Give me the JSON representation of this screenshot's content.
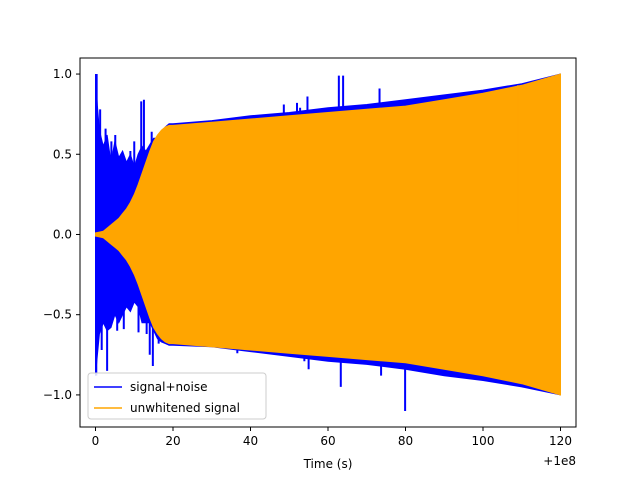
{
  "chart_data": {
    "type": "line",
    "title": "",
    "xlabel": "Time (s)",
    "ylabel": "",
    "x_offset_label": "+1e8",
    "xlim": [
      -4,
      124
    ],
    "ylim": [
      -1.2,
      1.1
    ],
    "x_ticks": [
      0,
      20,
      40,
      60,
      80,
      100,
      120
    ],
    "x_tick_labels": [
      "0",
      "20",
      "40",
      "60",
      "80",
      "100",
      "120"
    ],
    "y_ticks": [
      -1.0,
      -0.5,
      0.0,
      0.5,
      1.0
    ],
    "y_tick_labels": [
      "−1.0",
      "−0.5",
      "0.0",
      "0.5",
      "1.0"
    ],
    "grid": false,
    "legend_position": "lower-left",
    "series": [
      {
        "name": "signal+noise",
        "color": "#0000ff",
        "envelope": {
          "x": [
            0,
            0.5,
            1,
            2,
            3,
            4,
            5,
            6,
            7,
            8,
            9,
            10,
            11,
            12,
            13,
            14,
            15,
            16,
            17,
            18,
            19,
            20,
            30,
            40,
            50,
            60,
            70,
            80,
            90,
            100,
            110,
            120
          ],
          "upper": [
            1.0,
            0.8,
            0.65,
            0.55,
            0.62,
            0.45,
            0.58,
            0.48,
            0.52,
            0.45,
            0.5,
            0.42,
            0.5,
            0.55,
            0.52,
            0.56,
            0.6,
            0.6,
            0.64,
            0.67,
            0.69,
            0.69,
            0.71,
            0.74,
            0.76,
            0.79,
            0.81,
            0.84,
            0.87,
            0.9,
            0.94,
            1.0
          ],
          "lower": [
            -0.88,
            -0.75,
            -0.62,
            -0.55,
            -0.6,
            -0.58,
            -0.5,
            -0.55,
            -0.5,
            -0.45,
            -0.48,
            -0.42,
            -0.45,
            -0.55,
            -0.55,
            -0.55,
            -0.6,
            -0.65,
            -0.67,
            -0.68,
            -0.69,
            -0.69,
            -0.7,
            -0.73,
            -0.76,
            -0.79,
            -0.81,
            -0.84,
            -0.88,
            -0.91,
            -0.95,
            -1.0
          ]
        },
        "spikes": [
          {
            "x": 0.3,
            "y": 1.0
          },
          {
            "x": 0.2,
            "y": -0.88
          },
          {
            "x": 1.2,
            "y": 0.78
          },
          {
            "x": 1.6,
            "y": -0.72
          },
          {
            "x": 2.6,
            "y": 0.66
          },
          {
            "x": 3.0,
            "y": -0.85
          },
          {
            "x": 4.1,
            "y": 0.58
          },
          {
            "x": 5.1,
            "y": 0.62
          },
          {
            "x": 5.6,
            "y": -0.6
          },
          {
            "x": 7.3,
            "y": -0.59
          },
          {
            "x": 9.0,
            "y": 0.52
          },
          {
            "x": 10.0,
            "y": 0.58
          },
          {
            "x": 11.1,
            "y": -0.61
          },
          {
            "x": 11.8,
            "y": 0.83
          },
          {
            "x": 12.5,
            "y": 0.84
          },
          {
            "x": 13.2,
            "y": -0.62
          },
          {
            "x": 14.0,
            "y": -0.75
          },
          {
            "x": 14.5,
            "y": 0.64
          },
          {
            "x": 14.8,
            "y": -0.82
          },
          {
            "x": 16.0,
            "y": 0.57
          },
          {
            "x": 16.3,
            "y": -0.68
          },
          {
            "x": 18.0,
            "y": -0.62
          },
          {
            "x": 36.4,
            "y": 0.73
          },
          {
            "x": 36.6,
            "y": -0.74
          },
          {
            "x": 37.6,
            "y": 0.62
          },
          {
            "x": 37.8,
            "y": -0.72
          },
          {
            "x": 48.6,
            "y": 0.81
          },
          {
            "x": 49.2,
            "y": -0.74
          },
          {
            "x": 52.0,
            "y": 0.82
          },
          {
            "x": 52.8,
            "y": 0.79
          },
          {
            "x": 53.9,
            "y": -0.79
          },
          {
            "x": 54.7,
            "y": 0.86
          },
          {
            "x": 55.0,
            "y": -0.84
          },
          {
            "x": 62.8,
            "y": 0.99
          },
          {
            "x": 63.3,
            "y": -0.95
          },
          {
            "x": 63.9,
            "y": 0.99
          },
          {
            "x": 64.2,
            "y": -0.78
          },
          {
            "x": 73.3,
            "y": 0.91
          },
          {
            "x": 73.7,
            "y": -0.88
          },
          {
            "x": 79.8,
            "y": 0.78
          },
          {
            "x": 79.9,
            "y": -1.1
          }
        ]
      },
      {
        "name": "unwhitened signal",
        "color": "#ffa500",
        "envelope": {
          "x": [
            0,
            1,
            2,
            3,
            4,
            5,
            6,
            7,
            8,
            9,
            10,
            11,
            12,
            13,
            14,
            15,
            16,
            17,
            18,
            19,
            20,
            30,
            40,
            50,
            60,
            70,
            80,
            90,
            100,
            110,
            120
          ],
          "upper": [
            0.01,
            0.015,
            0.02,
            0.04,
            0.06,
            0.08,
            0.1,
            0.13,
            0.16,
            0.2,
            0.25,
            0.31,
            0.38,
            0.45,
            0.52,
            0.58,
            0.62,
            0.65,
            0.67,
            0.68,
            0.68,
            0.7,
            0.72,
            0.74,
            0.76,
            0.78,
            0.8,
            0.84,
            0.88,
            0.93,
            1.0
          ],
          "lower": [
            -0.01,
            -0.015,
            -0.02,
            -0.04,
            -0.06,
            -0.08,
            -0.1,
            -0.13,
            -0.16,
            -0.2,
            -0.25,
            -0.31,
            -0.38,
            -0.45,
            -0.52,
            -0.58,
            -0.62,
            -0.65,
            -0.67,
            -0.68,
            -0.68,
            -0.7,
            -0.72,
            -0.74,
            -0.76,
            -0.78,
            -0.8,
            -0.84,
            -0.88,
            -0.93,
            -1.0
          ]
        },
        "dips": [
          {
            "x": 108.8,
            "y": -0.92
          },
          {
            "x": 109.0,
            "y": 0.93
          }
        ]
      }
    ]
  }
}
